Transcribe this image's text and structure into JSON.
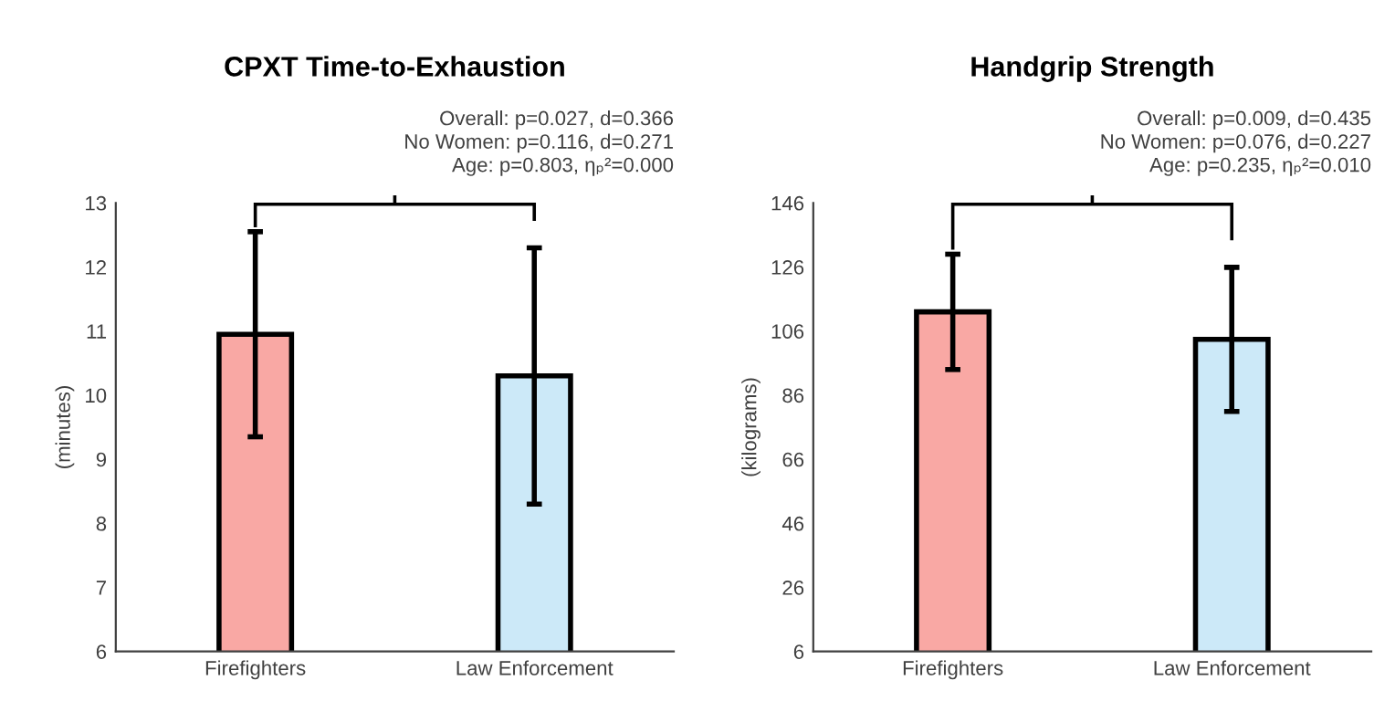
{
  "chart_data": [
    {
      "type": "bar",
      "title": "CPXT Time-to-Exhaustion",
      "ylabel": "(minutes)",
      "categories": [
        "Firefighters",
        "Law Enforcement"
      ],
      "values": [
        10.95,
        10.3
      ],
      "colors": [
        "#f9a8a4",
        "#cce9f8"
      ],
      "errors": [
        1.6,
        2.0
      ],
      "ylim": [
        6,
        13
      ],
      "yticks": [
        6,
        7,
        8,
        9,
        10,
        11,
        12,
        13
      ],
      "grid": false,
      "annotations": [
        "Overall: p=0.027, d=0.366",
        "No Women: p=0.116, d=0.271",
        "Age: p=0.803, ηₚ²=0.000"
      ]
    },
    {
      "type": "bar",
      "title": "Handgrip Strength",
      "ylabel": "(kilograms)",
      "categories": [
        "Firefighters",
        "Law Enforcement"
      ],
      "values": [
        112,
        103.4
      ],
      "colors": [
        "#f9a8a4",
        "#cce9f8"
      ],
      "errors": [
        18,
        22.5
      ],
      "ylim": [
        6,
        146
      ],
      "yticks": [
        6,
        26,
        46,
        66,
        86,
        106,
        126,
        146
      ],
      "grid": false,
      "annotations": [
        "Overall: p=0.009, d=0.435",
        "No Women: p=0.076, d=0.227",
        "Age: p=0.235, ηₚ²=0.010"
      ]
    }
  ]
}
